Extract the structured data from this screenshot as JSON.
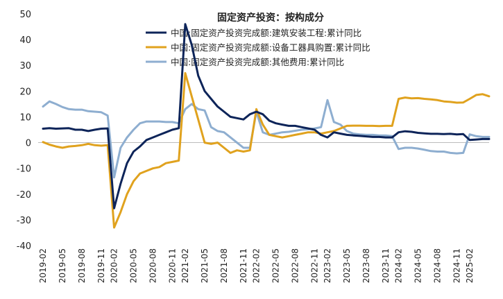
{
  "chart_data": {
    "type": "line",
    "title": "固定资产投资：按构成分",
    "xlabel": "",
    "ylabel": "",
    "ylim": [
      -40,
      50
    ],
    "yticks": [
      -40,
      -30,
      -20,
      -10,
      0,
      10,
      20,
      30,
      40,
      50
    ],
    "grid": false,
    "legend_position": "top-center",
    "x": [
      "2019-02",
      "2019-03",
      "2019-04",
      "2019-05",
      "2019-06",
      "2019-07",
      "2019-08",
      "2019-09",
      "2019-10",
      "2019-11",
      "2019-12",
      "2020-02",
      "2020-03",
      "2020-04",
      "2020-05",
      "2020-06",
      "2020-07",
      "2020-08",
      "2020-09",
      "2020-10",
      "2020-11",
      "2020-12",
      "2021-02",
      "2021-03",
      "2021-04",
      "2021-05",
      "2021-06",
      "2021-07",
      "2021-08",
      "2021-09",
      "2021-10",
      "2021-11",
      "2021-12",
      "2022-02",
      "2022-03",
      "2022-04",
      "2022-05",
      "2022-06",
      "2022-07",
      "2022-08",
      "2022-09",
      "2022-10",
      "2022-11",
      "2022-12",
      "2023-02",
      "2023-03",
      "2023-04",
      "2023-05",
      "2023-06",
      "2023-07",
      "2023-08",
      "2023-09",
      "2023-10",
      "2023-11",
      "2023-12",
      "2024-02",
      "2024-03",
      "2024-04",
      "2024-05",
      "2024-06",
      "2024-07",
      "2024-08",
      "2024-09",
      "2024-10",
      "2024-11",
      "2024-12",
      "2025-02",
      "2025-03",
      "2025-04",
      "2025-05"
    ],
    "xtick_labels": [
      "2019-02",
      "2019-05",
      "2019-08",
      "2019-11",
      "2020-02",
      "2020-05",
      "2020-08",
      "2020-11",
      "2021-02",
      "2021-05",
      "2021-08",
      "2021-11",
      "2022-02",
      "2022-05",
      "2022-08",
      "2022-11",
      "2023-02",
      "2023-05",
      "2023-08",
      "2023-11",
      "2024-02",
      "2024-05",
      "2024-08",
      "2024-11",
      "2025-02"
    ],
    "series": [
      {
        "name": "中国:固定资产投资完成额:建筑安装工程:累计同比",
        "color": "#0d2459",
        "values": [
          5.4,
          5.6,
          5.4,
          5.5,
          5.6,
          5.0,
          5.0,
          4.5,
          5.0,
          5.4,
          5.5,
          -25.5,
          -16.0,
          -8.0,
          -3.5,
          -1.5,
          1.0,
          2.0,
          3.0,
          4.0,
          5.0,
          5.6,
          46.0,
          38.0,
          26.0,
          20.0,
          17.0,
          14.0,
          12.0,
          10.0,
          9.5,
          9.0,
          11.0,
          12.0,
          11.0,
          8.5,
          7.5,
          7.0,
          6.5,
          6.5,
          6.0,
          5.5,
          5.0,
          3.0,
          2.0,
          4.0,
          3.5,
          3.0,
          2.8,
          2.6,
          2.4,
          2.2,
          2.2,
          2.0,
          2.0,
          4.0,
          4.4,
          4.2,
          3.8,
          3.6,
          3.4,
          3.4,
          3.3,
          3.4,
          3.2,
          3.3,
          1.0,
          1.2,
          1.4,
          1.4
        ]
      },
      {
        "name": "中国:固定资产投资完成额:设备工器具购置:累计同比",
        "color": "#e0a21e",
        "values": [
          0.2,
          -0.8,
          -1.5,
          -2.0,
          -1.5,
          -1.3,
          -1.0,
          -0.5,
          -1.0,
          -1.2,
          -1.0,
          -33.0,
          -27.0,
          -20.0,
          -15.0,
          -12.0,
          -11.0,
          -10.0,
          -9.5,
          -8.0,
          -7.5,
          -7.0,
          27.0,
          18.0,
          9.0,
          0.0,
          -0.5,
          0.0,
          -2.0,
          -4.0,
          -3.0,
          -3.5,
          -3.0,
          13.0,
          7.0,
          3.0,
          2.5,
          2.0,
          2.5,
          3.0,
          3.5,
          4.0,
          4.0,
          3.5,
          4.0,
          4.5,
          5.5,
          6.5,
          6.6,
          6.6,
          6.5,
          6.5,
          6.4,
          6.5,
          6.5,
          17.0,
          17.5,
          17.2,
          17.3,
          17.0,
          16.8,
          16.5,
          16.0,
          15.8,
          15.5,
          15.6,
          17.0,
          18.5,
          18.8,
          18.0
        ]
      },
      {
        "name": "中国:固定资产投资完成额:其他费用:累计同比",
        "color": "#8eaed0",
        "values": [
          14.0,
          16.0,
          15.0,
          13.8,
          13.0,
          12.8,
          12.8,
          12.2,
          12.0,
          11.8,
          10.5,
          -13.5,
          -2.0,
          2.0,
          5.0,
          7.5,
          8.2,
          8.2,
          8.2,
          8.0,
          8.0,
          7.5,
          13.0,
          15.0,
          13.0,
          12.5,
          6.0,
          4.5,
          4.0,
          2.0,
          0.0,
          -2.0,
          -2.0,
          12.0,
          4.0,
          3.0,
          3.5,
          4.0,
          4.2,
          4.6,
          5.0,
          5.2,
          5.5,
          6.0,
          16.5,
          8.0,
          7.0,
          4.5,
          3.5,
          3.2,
          3.0,
          3.0,
          2.8,
          2.8,
          2.5,
          -2.5,
          -2.0,
          -2.0,
          -2.3,
          -2.8,
          -3.3,
          -3.5,
          -3.5,
          -4.0,
          -4.2,
          -4.0,
          3.2,
          2.5,
          2.2,
          2.2
        ]
      }
    ]
  }
}
